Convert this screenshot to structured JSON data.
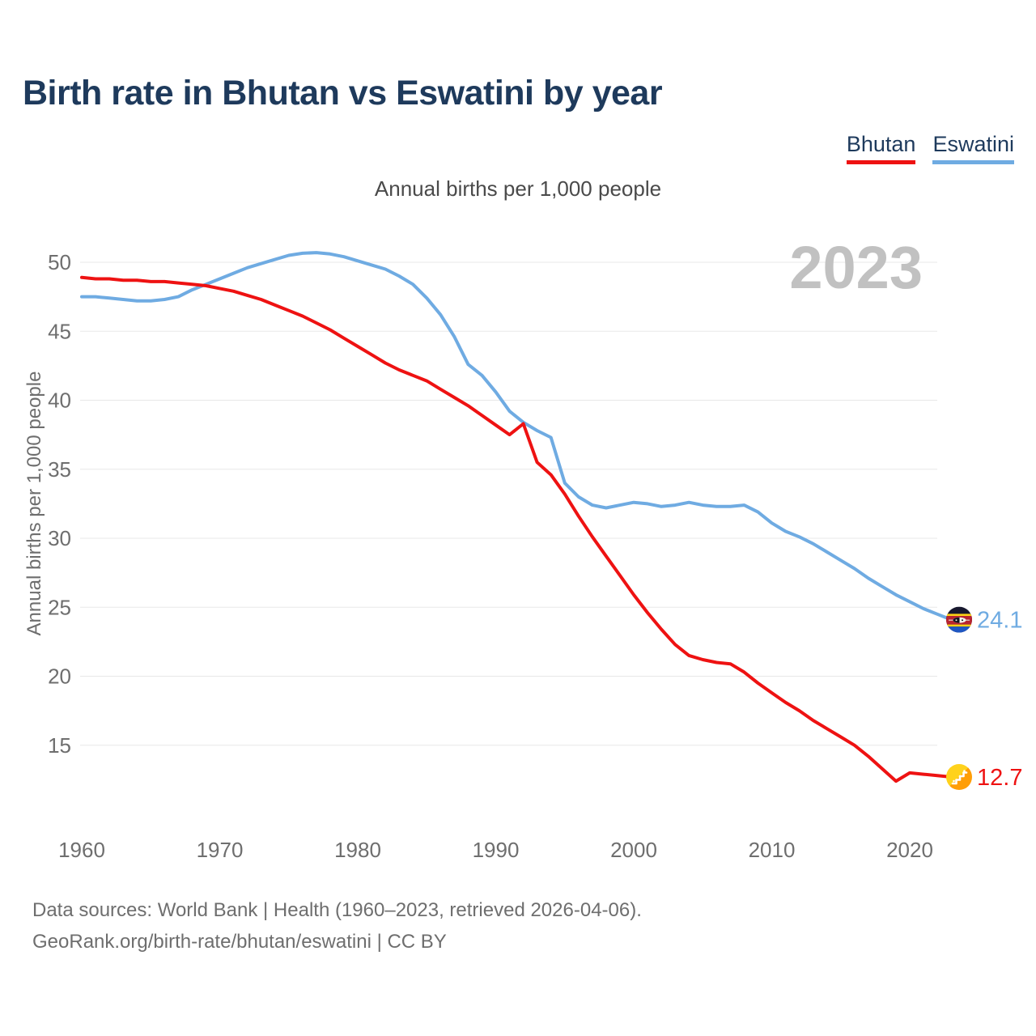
{
  "header": {
    "title": "Birth rate in Bhutan vs Eswatini by year"
  },
  "legend": {
    "items": [
      {
        "label": "Bhutan",
        "color": "#ee1212"
      },
      {
        "label": "Eswatini",
        "color": "#6fabe2"
      }
    ]
  },
  "chart": {
    "subtitle": "Annual births per 1,000 people",
    "y_axis_title": "Annual births per 1,000 people",
    "watermark": "2023",
    "end_labels": {
      "bhutan": "12.7",
      "eswatini": "24.1"
    }
  },
  "footer": {
    "line1": "Data sources: World Bank | Health (1960–2023, retrieved 2026-04-06).",
    "line2": "GeoRank.org/birth-rate/bhutan/eswatini | CC BY"
  },
  "chart_data": {
    "type": "line",
    "title": "Birth rate in Bhutan vs Eswatini by year",
    "subtitle": "Annual births per 1,000 people",
    "xlabel": "",
    "ylabel": "Annual births per 1,000 people",
    "xlim": [
      1960,
      2023
    ],
    "ylim": [
      11.5,
      52.5
    ],
    "grid": "horizontal",
    "legend_position": "top-right",
    "x_ticks": [
      1960,
      1970,
      1980,
      1990,
      2000,
      2010,
      2020
    ],
    "y_ticks": [
      15,
      20,
      25,
      30,
      35,
      40,
      45,
      50
    ],
    "x": [
      1960,
      1961,
      1962,
      1963,
      1964,
      1965,
      1966,
      1967,
      1968,
      1969,
      1970,
      1971,
      1972,
      1973,
      1974,
      1975,
      1976,
      1977,
      1978,
      1979,
      1980,
      1981,
      1982,
      1983,
      1984,
      1985,
      1986,
      1987,
      1988,
      1989,
      1990,
      1991,
      1992,
      1993,
      1994,
      1995,
      1996,
      1997,
      1998,
      1999,
      2000,
      2001,
      2002,
      2003,
      2004,
      2005,
      2006,
      2007,
      2008,
      2009,
      2010,
      2011,
      2012,
      2013,
      2014,
      2015,
      2016,
      2017,
      2018,
      2019,
      2020,
      2021,
      2022,
      2023
    ],
    "series": [
      {
        "name": "Bhutan",
        "color": "#ee1212",
        "end_value": 12.7,
        "end_label": "12.7",
        "values": [
          48.9,
          48.8,
          48.8,
          48.7,
          48.7,
          48.6,
          48.6,
          48.5,
          48.4,
          48.3,
          48.1,
          47.9,
          47.6,
          47.3,
          46.9,
          46.5,
          46.1,
          45.6,
          45.1,
          44.5,
          43.9,
          43.3,
          42.7,
          42.2,
          41.8,
          41.4,
          40.8,
          40.2,
          39.6,
          38.9,
          38.2,
          37.5,
          38.3,
          35.5,
          34.6,
          33.2,
          31.6,
          30.1,
          28.7,
          27.3,
          25.9,
          24.6,
          23.4,
          22.3,
          21.5,
          21.2,
          21.0,
          20.9,
          20.3,
          19.5,
          18.8,
          18.1,
          17.5,
          16.8,
          16.2,
          15.6,
          15.0,
          14.2,
          13.3,
          12.4,
          13.0,
          12.9,
          12.8,
          12.7
        ]
      },
      {
        "name": "Eswatini",
        "color": "#6fabe2",
        "end_value": 24.1,
        "end_label": "24.1",
        "values": [
          47.5,
          47.5,
          47.4,
          47.3,
          47.2,
          47.2,
          47.3,
          47.5,
          48.0,
          48.4,
          48.8,
          49.2,
          49.6,
          49.9,
          50.2,
          50.5,
          50.65,
          50.7,
          50.6,
          50.4,
          50.1,
          49.8,
          49.5,
          49.0,
          48.4,
          47.4,
          46.2,
          44.6,
          42.6,
          41.8,
          40.6,
          39.2,
          38.4,
          37.8,
          37.3,
          34.0,
          33.0,
          32.4,
          32.2,
          32.4,
          32.6,
          32.5,
          32.3,
          32.4,
          32.6,
          32.4,
          32.3,
          32.3,
          32.4,
          31.9,
          31.1,
          30.5,
          30.1,
          29.6,
          29.0,
          28.4,
          27.8,
          27.1,
          26.5,
          25.9,
          25.4,
          24.9,
          24.5,
          24.1
        ]
      }
    ]
  }
}
